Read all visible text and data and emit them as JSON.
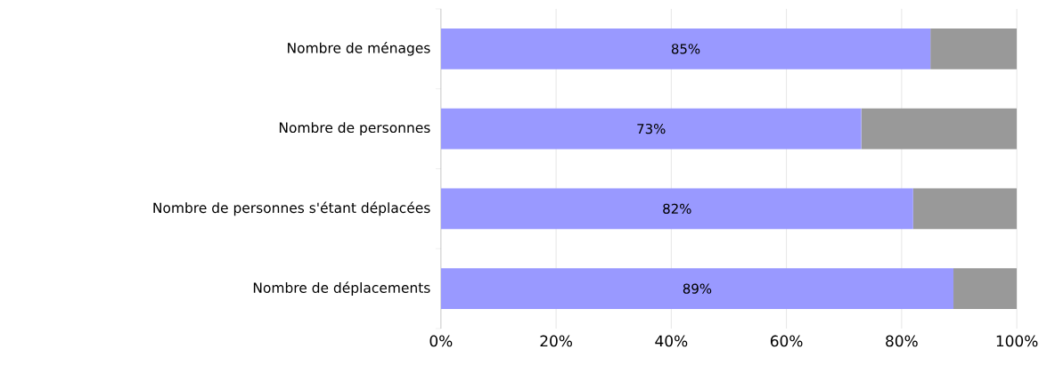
{
  "chart_data": {
    "type": "bar",
    "orientation": "horizontal",
    "stacked": true,
    "categories": [
      "Nombre de ménages",
      "Nombre de personnes",
      "Nombre de personnes s'étant déplacées",
      "Nombre de déplacements"
    ],
    "series": [
      {
        "color": "#9999ff",
        "values": [
          85,
          73,
          82,
          89
        ],
        "value_labels": [
          "85%",
          "73%",
          "82%",
          "89%"
        ]
      },
      {
        "color": "#999999",
        "values": [
          15,
          27,
          18,
          11
        ]
      }
    ],
    "xlim": [
      0,
      100
    ],
    "xticks": [
      {
        "value": 0,
        "label": "0%"
      },
      {
        "value": 20,
        "label": "20%"
      },
      {
        "value": 40,
        "label": "40%"
      },
      {
        "value": 60,
        "label": "60%"
      },
      {
        "value": 80,
        "label": "80%"
      },
      {
        "value": 100,
        "label": "100%"
      }
    ],
    "grid": "x"
  }
}
